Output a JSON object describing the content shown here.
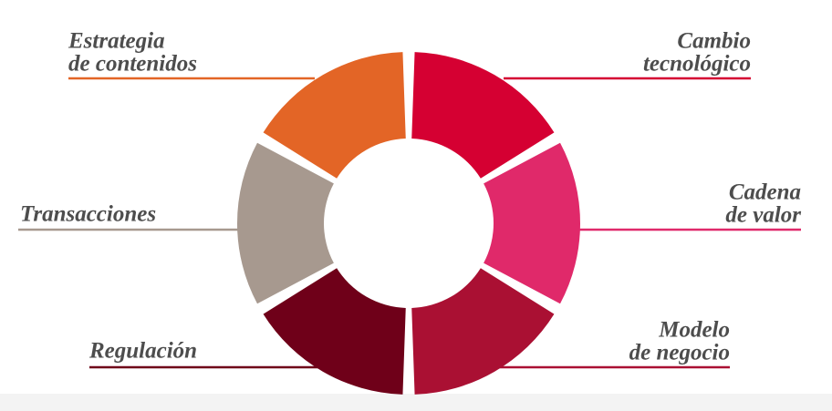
{
  "nodes": [
    {
      "lines": [
        "Cambio",
        "tecnológico"
      ],
      "color": "#d50032"
    },
    {
      "lines": [
        "Cadena",
        "de valor"
      ],
      "color": "#e0296a"
    },
    {
      "lines": [
        "Modelo",
        "de negocio"
      ],
      "color": "#aa1033"
    },
    {
      "lines": [
        "Regulación"
      ],
      "color": "#6f0019"
    },
    {
      "lines": [
        "Transacciones"
      ],
      "color": "#a7998f"
    },
    {
      "lines": [
        "Estrategia",
        "de contenidos"
      ],
      "color": "#e36526"
    }
  ]
}
